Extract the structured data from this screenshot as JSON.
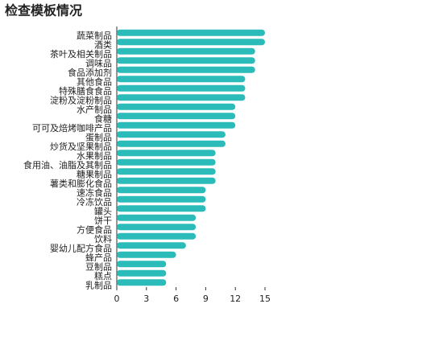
{
  "chart_data": {
    "type": "barh",
    "title": "检查模板情况",
    "categories": [
      "蔬菜制品",
      "酒类",
      "茶叶及相关制品",
      "调味品",
      "食品添加剂",
      "其他食品",
      "特殊膳食食品",
      "淀粉及淀粉制品",
      "水产制品",
      "食糖",
      "可可及焙烤咖啡产品",
      "蛋制品",
      "炒货及坚果制品",
      "水果制品",
      "食用油、油脂及其制品",
      "糖果制品",
      "薯类和膨化食品",
      "速冻食品",
      "冷冻饮品",
      "罐头",
      "饼干",
      "方便食品",
      "饮料",
      "婴幼儿配方食品",
      "蜂产品",
      "豆制品",
      "糕点",
      "乳制品"
    ],
    "values": [
      15,
      15,
      14,
      14,
      14,
      13,
      13,
      13,
      12,
      12,
      12,
      11,
      11,
      10,
      10,
      10,
      10,
      9,
      9,
      9,
      8,
      8,
      8,
      7,
      6,
      5,
      5,
      5
    ],
    "color": "#2bbbb8",
    "xlim": [
      0,
      15
    ],
    "xticks": [
      0,
      3,
      6,
      9,
      12,
      15
    ]
  }
}
